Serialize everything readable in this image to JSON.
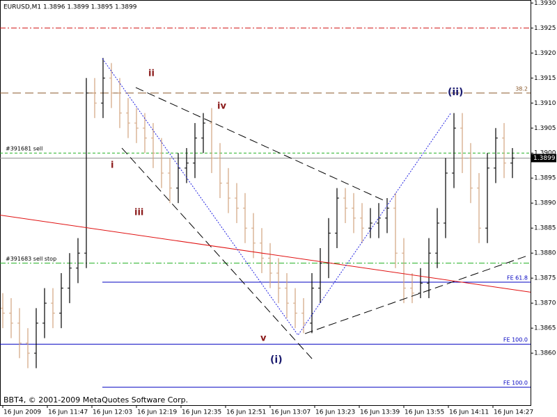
{
  "chart_data": {
    "type": "ohlc",
    "title": "EURUSD,M1  1.3896 1.3899 1.3895 1.3899",
    "footer": "BBT4, © 2001-2009 MetaQuotes Software Corp.",
    "xlim": [
      -1,
      189.5
    ],
    "ylim": [
      1.38496,
      1.39306
    ],
    "xticks": [
      {
        "value": 0,
        "label": "16 Jun 2009"
      },
      {
        "value": 16,
        "label": "16 Jun 11:47"
      },
      {
        "value": 32,
        "label": "16 Jun 12:03"
      },
      {
        "value": 48,
        "label": "16 Jun 12:19"
      },
      {
        "value": 64,
        "label": "16 Jun 12:35"
      },
      {
        "value": 80,
        "label": "16 Jun 12:51"
      },
      {
        "value": 96,
        "label": "16 Jun 13:07"
      },
      {
        "value": 112,
        "label": "16 Jun 13:23"
      },
      {
        "value": 128,
        "label": "16 Jun 13:39"
      },
      {
        "value": 144,
        "label": "16 Jun 13:55"
      },
      {
        "value": 160,
        "label": "16 Jun 14:11"
      },
      {
        "value": 176,
        "label": "16 Jun 14:27"
      }
    ],
    "yticks": [
      {
        "value": 1.393,
        "label": "1.3930"
      },
      1.3925,
      {
        "value": 1.392,
        "label": "1.3920"
      },
      1.3915,
      {
        "value": 1.391,
        "label": "1.3910"
      },
      1.3905,
      {
        "value": 1.39,
        "label": "1.3900"
      },
      1.3895,
      {
        "value": 1.389,
        "label": "1.3890"
      },
      1.3885,
      {
        "value": 1.388,
        "label": "1.3880"
      },
      1.3875,
      {
        "value": 1.387,
        "label": "1.3870"
      },
      1.3865,
      {
        "value": 1.386,
        "label": "1.3860"
      }
    ],
    "up_color": "#000000",
    "down_color": "#d2a47e",
    "x": [
      0,
      3,
      6,
      9,
      12,
      15,
      18,
      21,
      24,
      27,
      30,
      33,
      36,
      39,
      42,
      45,
      48,
      51,
      54,
      57,
      60,
      63,
      66,
      69,
      72,
      75,
      78,
      81,
      84,
      87,
      90,
      93,
      96,
      99,
      102,
      105,
      108,
      111,
      114,
      117,
      120,
      123,
      126,
      129,
      132,
      135,
      138,
      141,
      144,
      147,
      150,
      153,
      156,
      159,
      162,
      165,
      168,
      171,
      174,
      177,
      180,
      183
    ],
    "open": [
      1.3869,
      1.3868,
      1.3866,
      1.3862,
      1.386,
      1.3866,
      1.387,
      1.3868,
      1.3873,
      1.3877,
      1.388,
      1.3912,
      1.391,
      1.3915,
      1.3912,
      1.3908,
      1.3906,
      1.3905,
      1.3903,
      1.39,
      1.3896,
      1.3893,
      1.3897,
      1.3898,
      1.3903,
      1.3906,
      1.3899,
      1.3894,
      1.3891,
      1.3889,
      1.3885,
      1.3882,
      1.3879,
      1.3876,
      1.3873,
      1.387,
      1.3868,
      1.3866,
      1.3873,
      1.3878,
      1.3884,
      1.3891,
      1.3889,
      1.3887,
      1.3885,
      1.3886,
      1.3887,
      1.3889,
      1.388,
      1.3873,
      1.3872,
      1.3874,
      1.388,
      1.3886,
      1.3896,
      1.3905,
      1.3899,
      1.3893,
      1.3885,
      1.3897,
      1.3903,
      1.3898
    ],
    "high": [
      1.3872,
      1.3871,
      1.3869,
      1.3865,
      1.3869,
      1.3873,
      1.3873,
      1.3876,
      1.388,
      1.3883,
      1.3915,
      1.3915,
      1.3919,
      1.3918,
      1.3915,
      1.3911,
      1.3909,
      1.3908,
      1.3906,
      1.3903,
      1.3899,
      1.39,
      1.3901,
      1.3906,
      1.3908,
      1.3909,
      1.3902,
      1.3897,
      1.3894,
      1.3892,
      1.3888,
      1.3885,
      1.3882,
      1.3879,
      1.3876,
      1.3873,
      1.3871,
      1.3876,
      1.3881,
      1.3887,
      1.3893,
      1.3893,
      1.3892,
      1.389,
      1.3889,
      1.389,
      1.3891,
      1.3892,
      1.3883,
      1.3876,
      1.3877,
      1.3883,
      1.3889,
      1.3899,
      1.3908,
      1.3908,
      1.3902,
      1.3896,
      1.39,
      1.3905,
      1.3906,
      1.3901
    ],
    "low": [
      1.3865,
      1.3863,
      1.3859,
      1.3857,
      1.3857,
      1.3863,
      1.3865,
      1.3865,
      1.387,
      1.3874,
      1.3877,
      1.3907,
      1.3907,
      1.3909,
      1.3905,
      1.3903,
      1.3902,
      1.39,
      1.3897,
      1.3893,
      1.389,
      1.389,
      1.3894,
      1.3895,
      1.39,
      1.3896,
      1.3891,
      1.3888,
      1.3886,
      1.3882,
      1.3879,
      1.3876,
      1.3873,
      1.387,
      1.3867,
      1.3865,
      1.3864,
      1.3864,
      1.387,
      1.3875,
      1.3881,
      1.3886,
      1.3884,
      1.3882,
      1.3883,
      1.3883,
      1.3884,
      1.3877,
      1.387,
      1.387,
      1.3871,
      1.3871,
      1.3877,
      1.3883,
      1.3893,
      1.3896,
      1.389,
      1.3882,
      1.3882,
      1.3894,
      1.3895,
      1.3895
    ],
    "close": [
      1.3868,
      1.3866,
      1.3862,
      1.386,
      1.3866,
      1.387,
      1.3868,
      1.3873,
      1.3877,
      1.388,
      1.3912,
      1.391,
      1.3915,
      1.3912,
      1.3908,
      1.3906,
      1.3905,
      1.3903,
      1.39,
      1.3896,
      1.3893,
      1.3897,
      1.3898,
      1.3903,
      1.3906,
      1.3899,
      1.3894,
      1.3891,
      1.3889,
      1.3885,
      1.3882,
      1.3879,
      1.3876,
      1.3873,
      1.387,
      1.3868,
      1.3866,
      1.3873,
      1.3878,
      1.3884,
      1.3891,
      1.3889,
      1.3887,
      1.3885,
      1.3886,
      1.3887,
      1.3889,
      1.388,
      1.3873,
      1.3872,
      1.3874,
      1.388,
      1.3886,
      1.3896,
      1.3905,
      1.3899,
      1.3893,
      1.3885,
      1.3897,
      1.3903,
      1.3898,
      1.3899
    ],
    "current_price": 1.3899,
    "current_color": "#909090",
    "levels": [
      {
        "value": 1.3925,
        "color": "#d01010",
        "style": "dashdot",
        "x_start": -1
      },
      {
        "value": 1.3912,
        "color": "#8b5a2b",
        "style": "longdash",
        "x_start": -1,
        "label": "38.2",
        "label_side": "right"
      },
      {
        "value": 1.39,
        "color": "#20b020",
        "style": "dash",
        "x_start": -1,
        "label": "#391681 sell",
        "label_side": "left"
      },
      {
        "value": 1.3878,
        "color": "#20b020",
        "style": "dashdot",
        "x_start": -1,
        "label": "#391683 sell stop",
        "label_side": "left"
      },
      {
        "value": 1.38742,
        "color": "#0000c0",
        "style": "solid",
        "x_start": 35.75,
        "label": "FE 61.8",
        "label_side": "right"
      },
      {
        "value": 1.38618,
        "color": "#0000c0",
        "style": "solid",
        "x_start": -1,
        "label": "FE 100.0",
        "label_side": "right"
      },
      {
        "value": 1.38532,
        "color": "#0000c0",
        "style": "solid",
        "x_start": 35.75,
        "label": "FE 100.0",
        "label_side": "right"
      }
    ],
    "trendlines": [
      {
        "x": [
          42.75,
          111.5
        ],
        "y": [
          1.3901,
          1.38586
        ],
        "color": "#000000",
        "style": "longdash"
      },
      {
        "x": [
          47.75,
          137.75
        ],
        "y": [
          1.39131,
          1.38903
        ],
        "color": "#000000",
        "style": "longdash"
      },
      {
        "x": [
          108.5,
          189
        ],
        "y": [
          1.38639,
          1.38796
        ],
        "color": "#000000",
        "style": "longdash"
      },
      {
        "x": [
          -1,
          189.5
        ],
        "y": [
          1.38876,
          1.38722
        ],
        "color": "#e01010",
        "style": "solid"
      },
      {
        "x": [
          35.75,
          106,
          161
        ],
        "y": [
          1.39189,
          1.38636,
          1.39081
        ],
        "color": "#2020e0",
        "style": "dot"
      }
    ],
    "wave_labels": [
      "ii",
      "iv",
      "i",
      "iii",
      "v",
      "(i)",
      "(ii)"
    ]
  }
}
